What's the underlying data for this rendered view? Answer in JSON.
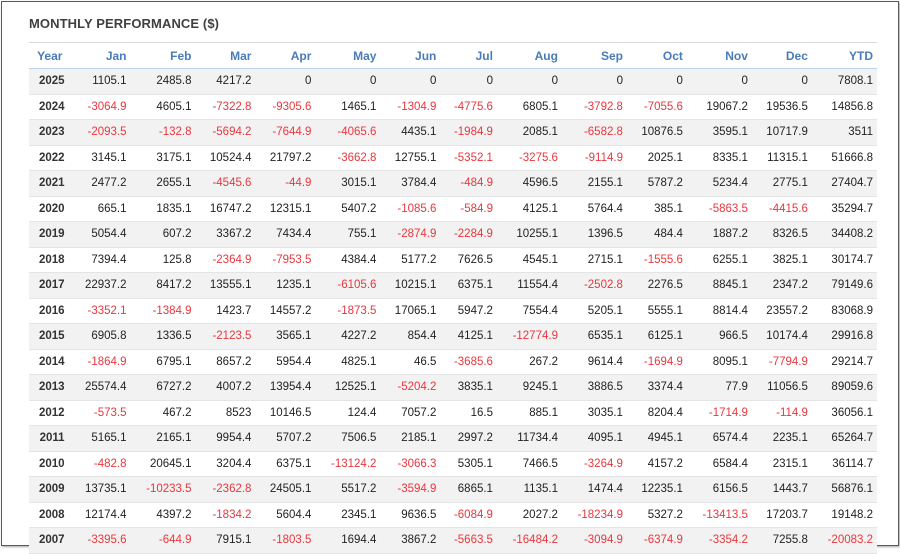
{
  "title": "MONTHLY PERFORMANCE ($)",
  "colors": {
    "header": "#4a7cb8",
    "negative": "#e8373e",
    "positive": "#222222"
  },
  "columns": [
    "Year",
    "Jan",
    "Feb",
    "Mar",
    "Apr",
    "May",
    "Jun",
    "Jul",
    "Aug",
    "Sep",
    "Oct",
    "Nov",
    "Dec",
    "YTD"
  ],
  "rows": [
    [
      "2025",
      "1105.1",
      "2485.8",
      "4217.2",
      "0",
      "0",
      "0",
      "0",
      "0",
      "0",
      "0",
      "0",
      "0",
      "7808.1"
    ],
    [
      "2024",
      "-3064.9",
      "4605.1",
      "-7322.8",
      "-9305.6",
      "1465.1",
      "-1304.9",
      "-4775.6",
      "6805.1",
      "-3792.8",
      "-7055.6",
      "19067.2",
      "19536.5",
      "14856.8"
    ],
    [
      "2023",
      "-2093.5",
      "-132.8",
      "-5694.2",
      "-7644.9",
      "-4065.6",
      "4435.1",
      "-1984.9",
      "2085.1",
      "-6582.8",
      "10876.5",
      "3595.1",
      "10717.9",
      "3511"
    ],
    [
      "2022",
      "3145.1",
      "3175.1",
      "10524.4",
      "21797.2",
      "-3662.8",
      "12755.1",
      "-5352.1",
      "-3275.6",
      "-9114.9",
      "2025.1",
      "8335.1",
      "11315.1",
      "51666.8"
    ],
    [
      "2021",
      "2477.2",
      "2655.1",
      "-4545.6",
      "-44.9",
      "3015.1",
      "3784.4",
      "-484.9",
      "4596.5",
      "2155.1",
      "5787.2",
      "5234.4",
      "2775.1",
      "27404.7"
    ],
    [
      "2020",
      "665.1",
      "1835.1",
      "16747.2",
      "12315.1",
      "5407.2",
      "-1085.6",
      "-584.9",
      "4125.1",
      "5764.4",
      "385.1",
      "-5863.5",
      "-4415.6",
      "35294.7"
    ],
    [
      "2019",
      "5054.4",
      "607.2",
      "3367.2",
      "7434.4",
      "755.1",
      "-2874.9",
      "-2284.9",
      "10255.1",
      "1396.5",
      "484.4",
      "1887.2",
      "8326.5",
      "34408.2"
    ],
    [
      "2018",
      "7394.4",
      "125.8",
      "-2364.9",
      "-7953.5",
      "4384.4",
      "5177.2",
      "7626.5",
      "4545.1",
      "2715.1",
      "-1555.6",
      "6255.1",
      "3825.1",
      "30174.7"
    ],
    [
      "2017",
      "22937.2",
      "8417.2",
      "13555.1",
      "1235.1",
      "-6105.6",
      "10215.1",
      "6375.1",
      "11554.4",
      "-2502.8",
      "2276.5",
      "8845.1",
      "2347.2",
      "79149.6"
    ],
    [
      "2016",
      "-3352.1",
      "-1384.9",
      "1423.7",
      "14557.2",
      "-1873.5",
      "17065.1",
      "5947.2",
      "7554.4",
      "5205.1",
      "5555.1",
      "8814.4",
      "23557.2",
      "83068.9"
    ],
    [
      "2015",
      "6905.8",
      "1336.5",
      "-2123.5",
      "3565.1",
      "4227.2",
      "854.4",
      "4125.1",
      "-12774.9",
      "6535.1",
      "6125.1",
      "966.5",
      "10174.4",
      "29916.8"
    ],
    [
      "2014",
      "-1864.9",
      "6795.1",
      "8657.2",
      "5954.4",
      "4825.1",
      "46.5",
      "-3685.6",
      "267.2",
      "9614.4",
      "-1694.9",
      "8095.1",
      "-7794.9",
      "29214.7"
    ],
    [
      "2013",
      "25574.4",
      "6727.2",
      "4007.2",
      "13954.4",
      "12525.1",
      "-5204.2",
      "3835.1",
      "9245.1",
      "3886.5",
      "3374.4",
      "77.9",
      "11056.5",
      "89059.6"
    ],
    [
      "2012",
      "-573.5",
      "467.2",
      "8523",
      "10146.5",
      "124.4",
      "7057.2",
      "16.5",
      "885.1",
      "3035.1",
      "8204.4",
      "-1714.9",
      "-114.9",
      "36056.1"
    ],
    [
      "2011",
      "5165.1",
      "2165.1",
      "9954.4",
      "5707.2",
      "7506.5",
      "2185.1",
      "2997.2",
      "11734.4",
      "4095.1",
      "4945.1",
      "6574.4",
      "2235.1",
      "65264.7"
    ],
    [
      "2010",
      "-482.8",
      "20645.1",
      "3204.4",
      "6375.1",
      "-13124.2",
      "-3066.3",
      "5305.1",
      "7466.5",
      "-3264.9",
      "4157.2",
      "6584.4",
      "2315.1",
      "36114.7"
    ],
    [
      "2009",
      "13735.1",
      "-10233.5",
      "-2362.8",
      "24505.1",
      "5517.2",
      "-3594.9",
      "6865.1",
      "1135.1",
      "1474.4",
      "12235.1",
      "6156.5",
      "1443.7",
      "56876.1"
    ],
    [
      "2008",
      "12174.4",
      "4397.2",
      "-1834.2",
      "5604.4",
      "2345.1",
      "9636.5",
      "-6084.9",
      "2027.2",
      "-18234.9",
      "5327.2",
      "-13413.5",
      "17203.7",
      "19148.2"
    ],
    [
      "2007",
      "-3395.6",
      "-644.9",
      "7915.1",
      "-1803.5",
      "1694.4",
      "3867.2",
      "-5663.5",
      "-16484.2",
      "-3094.9",
      "-6374.9",
      "-3354.2",
      "7255.8",
      "-20083.2"
    ]
  ]
}
